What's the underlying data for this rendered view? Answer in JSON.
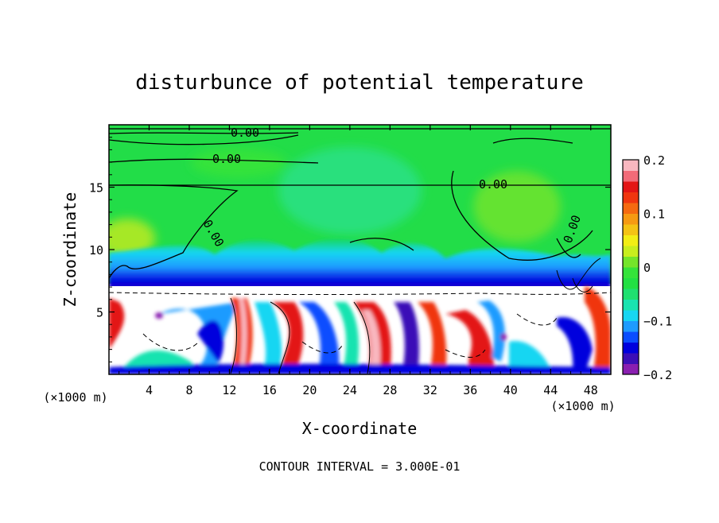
{
  "chart_data": {
    "type": "heatmap",
    "title": "disturbunce of potential temperature",
    "xlabel": "X-coordinate",
    "ylabel": "Z-coordinate",
    "x_unit_label": "(×1000 m)",
    "z_unit_label": "(×1000 m)",
    "x_ticks": [
      "4",
      "8",
      "12",
      "16",
      "20",
      "24",
      "28",
      "32",
      "36",
      "40",
      "44",
      "48"
    ],
    "z_ticks": [
      "5",
      "10",
      "15"
    ],
    "xlim": [
      0,
      50
    ],
    "ylim": [
      0,
      20
    ],
    "footer": "CONTOUR INTERVAL = 3.000E-01",
    "contour_label": "0.00",
    "colorbar": {
      "ticks": [
        "0.2",
        "0.1",
        "0",
        "−0.1",
        "−0.2"
      ],
      "range": [
        -0.2,
        0.2
      ],
      "colors": [
        "#8a1fb0",
        "#3b0fb7",
        "#0000dd",
        "#0a4dff",
        "#1e9bff",
        "#17d6f2",
        "#19e3b0",
        "#1fe070",
        "#22e043",
        "#35e33a",
        "#74e52a",
        "#c8ee1e",
        "#f2ee15",
        "#f4c314",
        "#f69a12",
        "#f56a10",
        "#f0360f",
        "#e31515",
        "#f26b78",
        "#f9b7bf"
      ]
    }
  }
}
